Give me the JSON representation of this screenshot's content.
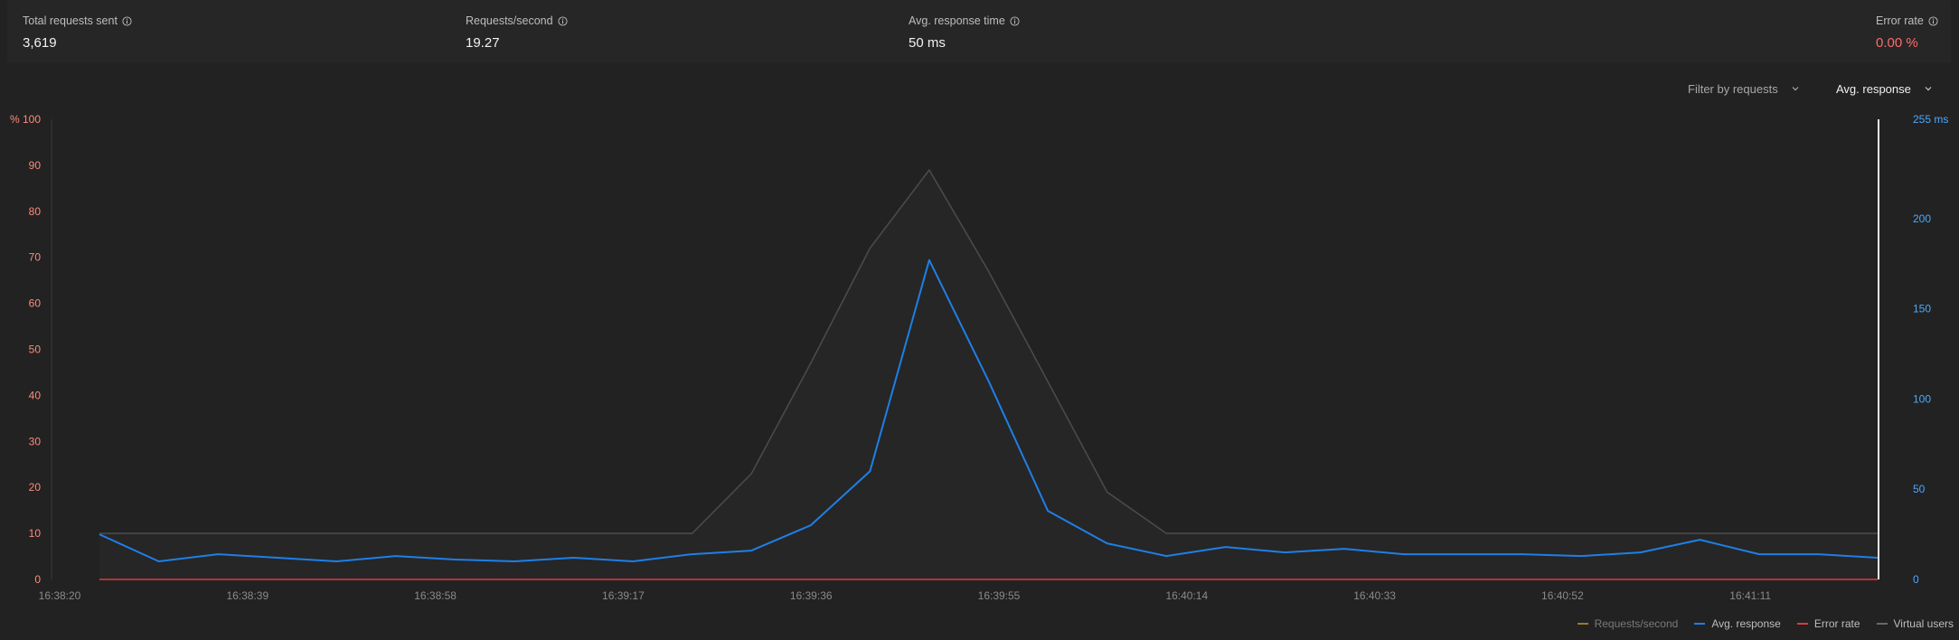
{
  "stats": {
    "total_requests": {
      "label": "Total requests sent",
      "value": "3,619"
    },
    "requests_per_second": {
      "label": "Requests/second",
      "value": "19.27"
    },
    "avg_response_time": {
      "label": "Avg. response time",
      "value": "50 ms"
    },
    "error_rate": {
      "label": "Error rate",
      "value": "0.00 %"
    }
  },
  "filters": {
    "filter_by": "Filter by requests",
    "metric": "Avg. response"
  },
  "colors": {
    "background": "#222222",
    "avg_response": "#1e7fe6",
    "virtual_users": "#4a4a4a",
    "error_rate": "#e03a3a",
    "requests_per_second": "#9a7a2a",
    "left_axis_labels": "#ff8a7a",
    "right_axis_labels": "#4aa8ff"
  },
  "chart_data": {
    "type": "line",
    "x_ticks": [
      "16:38:20",
      "16:38:39",
      "16:38:58",
      "16:39:17",
      "16:39:36",
      "16:39:55",
      "16:40:14",
      "16:40:33",
      "16:40:52",
      "16:41:11"
    ],
    "left_axis": {
      "ticks": [
        "% 100",
        "90",
        "80",
        "70",
        "60",
        "50",
        "40",
        "30",
        "20",
        "10",
        "0"
      ],
      "range": [
        0,
        100
      ],
      "unit": "%"
    },
    "right_axis": {
      "ticks": [
        "255 ms",
        "200",
        "150",
        "100",
        "50",
        "0"
      ],
      "range": [
        0,
        255
      ],
      "unit": "ms"
    },
    "grid": false,
    "legend_position": "bottom-right",
    "legend": [
      "Requests/second",
      "Avg. response",
      "Error rate",
      "Virtual users"
    ],
    "series": [
      {
        "name": "Avg. response",
        "axis": "right",
        "values": [
          25,
          10,
          14,
          12,
          10,
          13,
          11,
          10,
          12,
          10,
          14,
          16,
          30,
          60,
          177,
          110,
          38,
          20,
          13,
          18,
          15,
          17,
          14,
          14,
          14,
          13,
          15,
          22,
          14,
          14,
          12
        ]
      },
      {
        "name": "Virtual users",
        "axis": "left",
        "values": [
          10,
          10,
          10,
          10,
          10,
          10,
          10,
          10,
          10,
          10,
          10,
          23,
          47,
          72,
          89,
          67,
          43,
          19,
          10,
          10,
          10,
          10,
          10,
          10,
          10,
          10,
          10,
          10,
          10,
          10,
          10
        ]
      },
      {
        "name": "Error rate",
        "axis": "left",
        "values": [
          0,
          0,
          0,
          0,
          0,
          0,
          0,
          0,
          0,
          0,
          0,
          0,
          0,
          0,
          0,
          0,
          0,
          0,
          0,
          0,
          0,
          0,
          0,
          0,
          0,
          0,
          0,
          0,
          0,
          0,
          0
        ]
      },
      {
        "name": "Requests/second",
        "axis": "left",
        "values": []
      }
    ]
  }
}
